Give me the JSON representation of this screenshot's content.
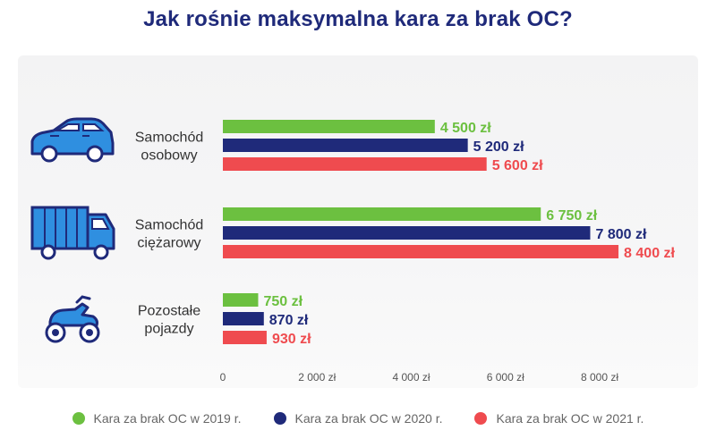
{
  "chart_data": {
    "type": "bar",
    "orientation": "horizontal",
    "title": "Jak rośnie maksymalna kara za brak OC?",
    "categories": [
      "Samochód osobowy",
      "Samochód ciężarowy",
      "Pozostałe pojazdy"
    ],
    "category_lines": [
      [
        "Samochód",
        "osobowy"
      ],
      [
        "Samochód",
        "ciężarowy"
      ],
      [
        "Pozostałe",
        "pojazdy"
      ]
    ],
    "category_icons": [
      "car-icon",
      "truck-icon",
      "quad-icon"
    ],
    "series": [
      {
        "name": "Kara za brak OC w 2019 r.",
        "color": "#6cc040",
        "values": [
          4500,
          6750,
          750
        ],
        "labels": [
          "4 500 zł",
          "6 750 zł",
          "750 zł"
        ]
      },
      {
        "name": "Kara za brak OC w 2020 r.",
        "color": "#1f2a7a",
        "values": [
          5200,
          7800,
          870
        ],
        "labels": [
          "5 200 zł",
          "7 800 zł",
          "870 zł"
        ]
      },
      {
        "name": "Kara za brak OC w 2021 r.",
        "color": "#ef4b4f",
        "values": [
          5600,
          8400,
          930
        ],
        "labels": [
          "5 600 zł",
          "8 400 zł",
          "930 zł"
        ]
      }
    ],
    "xlim": [
      0,
      8000
    ],
    "xticks": [
      0,
      2000,
      4000,
      6000,
      8000
    ],
    "xtick_labels": [
      "0",
      "2 000 zł",
      "4 000 zł",
      "6 000 zł",
      "8 000 zł"
    ],
    "legend_position": "bottom",
    "grid": false
  },
  "colors": {
    "title": "#1f2a7a",
    "icon": "#2f8fe0",
    "icon_outline": "#1f2a7a"
  }
}
